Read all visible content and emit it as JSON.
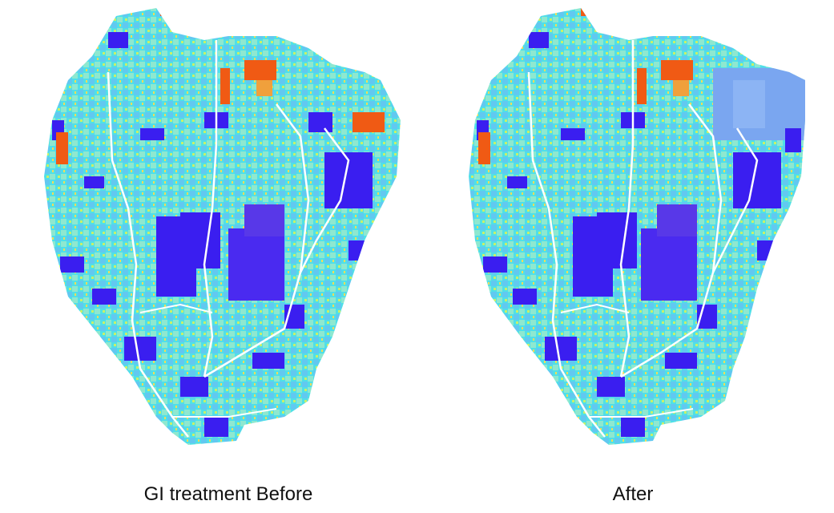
{
  "panels": [
    {
      "id": "before",
      "caption": "GI treatment Before"
    },
    {
      "id": "after",
      "caption": "After"
    }
  ],
  "colors": {
    "impervious": "#3a1ef0",
    "low": "#46e8e8",
    "mid_low": "#5fd0f0",
    "mid": "#c8f06a",
    "high": "#f0c832",
    "very_high": "#f05a14",
    "streams": "#ffffff",
    "treated_area": "#7aa6f0"
  }
}
